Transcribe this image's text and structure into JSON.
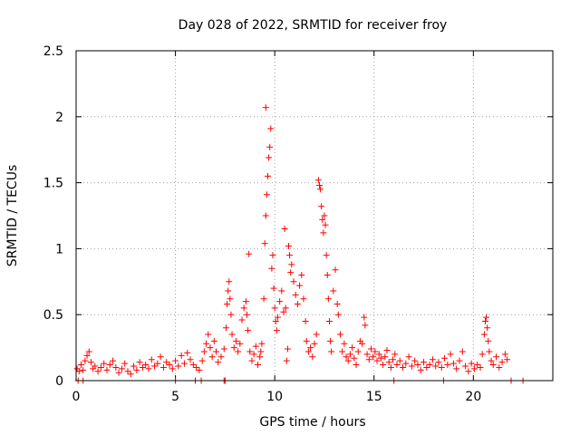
{
  "chart_data": {
    "type": "scatter",
    "title": "Day 028 of 2022, SRMTID for receiver froy",
    "xlabel": "GPS time / hours",
    "ylabel": "SRMTID / TECUs",
    "xlim": [
      0,
      24
    ],
    "ylim": [
      0,
      2.5
    ],
    "x_ticks": [
      0,
      5,
      10,
      15,
      20
    ],
    "x_tick_labels": [
      "0",
      "5",
      "10",
      "15",
      "20"
    ],
    "y_ticks": [
      0,
      0.5,
      1,
      1.5,
      2,
      2.5
    ],
    "y_tick_labels": [
      "0",
      "0.5",
      "1",
      "1.5",
      "2",
      "2.5"
    ],
    "grid": true,
    "marker": "plus",
    "series_color": "#ff0000",
    "series": [
      {
        "name": "SRMTID",
        "points": [
          [
            0.05,
            0.09
          ],
          [
            0.15,
            0.07
          ],
          [
            0.25,
            0.12
          ],
          [
            0.35,
            0.08
          ],
          [
            0.45,
            0.15
          ],
          [
            0.55,
            0.19
          ],
          [
            0.65,
            0.22
          ],
          [
            0.75,
            0.14
          ],
          [
            0.85,
            0.09
          ],
          [
            0.95,
            0.11
          ],
          [
            1.1,
            0.07
          ],
          [
            1.25,
            0.1
          ],
          [
            1.4,
            0.13
          ],
          [
            1.55,
            0.08
          ],
          [
            1.7,
            0.12
          ],
          [
            1.85,
            0.15
          ],
          [
            2.0,
            0.1
          ],
          [
            2.15,
            0.06
          ],
          [
            2.3,
            0.09
          ],
          [
            2.45,
            0.13
          ],
          [
            2.6,
            0.07
          ],
          [
            2.75,
            0.05
          ],
          [
            2.9,
            0.11
          ],
          [
            3.05,
            0.08
          ],
          [
            3.2,
            0.14
          ],
          [
            3.35,
            0.1
          ],
          [
            3.5,
            0.12
          ],
          [
            3.65,
            0.09
          ],
          [
            3.8,
            0.16
          ],
          [
            3.95,
            0.11
          ],
          [
            4.1,
            0.13
          ],
          [
            4.25,
            0.18
          ],
          [
            4.4,
            0.1
          ],
          [
            4.55,
            0.14
          ],
          [
            4.7,
            0.12
          ],
          [
            4.85,
            0.09
          ],
          [
            5.0,
            0.15
          ],
          [
            5.15,
            0.11
          ],
          [
            5.3,
            0.19
          ],
          [
            5.45,
            0.13
          ],
          [
            5.6,
            0.21
          ],
          [
            5.75,
            0.16
          ],
          [
            5.9,
            0.12
          ],
          [
            6.05,
            0.1
          ],
          [
            6.2,
            0.08
          ],
          [
            6.35,
            0.15
          ],
          [
            6.45,
            0.22
          ],
          [
            6.55,
            0.28
          ],
          [
            6.65,
            0.35
          ],
          [
            6.75,
            0.25
          ],
          [
            6.85,
            0.18
          ],
          [
            6.95,
            0.3
          ],
          [
            7.05,
            0.22
          ],
          [
            7.15,
            0.14
          ],
          [
            7.3,
            0.18
          ],
          [
            7.45,
            0.24
          ],
          [
            7.55,
            0.4
          ],
          [
            7.6,
            0.58
          ],
          [
            7.65,
            0.68
          ],
          [
            7.7,
            0.75
          ],
          [
            7.75,
            0.62
          ],
          [
            7.8,
            0.5
          ],
          [
            7.85,
            0.35
          ],
          [
            7.95,
            0.25
          ],
          [
            8.05,
            0.3
          ],
          [
            8.15,
            0.22
          ],
          [
            8.25,
            0.28
          ],
          [
            8.35,
            0.46
          ],
          [
            8.45,
            0.55
          ],
          [
            8.55,
            0.6
          ],
          [
            8.6,
            0.5
          ],
          [
            8.65,
            0.38
          ],
          [
            8.7,
            0.96
          ],
          [
            8.75,
            0.22
          ],
          [
            8.85,
            0.15
          ],
          [
            8.95,
            0.2
          ],
          [
            9.05,
            0.26
          ],
          [
            9.15,
            0.12
          ],
          [
            9.25,
            0.18
          ],
          [
            9.3,
            0.22
          ],
          [
            9.35,
            0.28
          ],
          [
            9.45,
            0.62
          ],
          [
            9.5,
            1.04
          ],
          [
            9.55,
            1.25
          ],
          [
            9.6,
            1.41
          ],
          [
            9.65,
            1.55
          ],
          [
            9.7,
            1.69
          ],
          [
            9.75,
            1.77
          ],
          [
            9.8,
            1.91
          ],
          [
            9.55,
            2.07
          ],
          [
            9.85,
            0.85
          ],
          [
            9.9,
            0.95
          ],
          [
            9.95,
            0.7
          ],
          [
            10.0,
            0.55
          ],
          [
            10.05,
            0.45
          ],
          [
            10.1,
            0.38
          ],
          [
            10.15,
            0.48
          ],
          [
            10.25,
            0.6
          ],
          [
            10.35,
            0.68
          ],
          [
            10.45,
            0.52
          ],
          [
            10.5,
            1.15
          ],
          [
            10.55,
            0.55
          ],
          [
            10.6,
            0.15
          ],
          [
            10.65,
            0.24
          ],
          [
            10.7,
            1.02
          ],
          [
            10.75,
            0.95
          ],
          [
            10.8,
            0.82
          ],
          [
            10.85,
            0.88
          ],
          [
            10.95,
            0.75
          ],
          [
            11.05,
            0.65
          ],
          [
            11.15,
            0.58
          ],
          [
            11.25,
            0.72
          ],
          [
            11.35,
            0.8
          ],
          [
            11.45,
            0.62
          ],
          [
            11.55,
            0.45
          ],
          [
            11.6,
            0.3
          ],
          [
            11.7,
            0.22
          ],
          [
            11.8,
            0.25
          ],
          [
            11.9,
            0.18
          ],
          [
            12.0,
            0.28
          ],
          [
            12.1,
            0.35
          ],
          [
            12.2,
            1.52
          ],
          [
            12.25,
            1.48
          ],
          [
            12.3,
            1.45
          ],
          [
            12.35,
            1.32
          ],
          [
            12.4,
            1.22
          ],
          [
            12.45,
            1.12
          ],
          [
            12.5,
            1.25
          ],
          [
            12.55,
            1.18
          ],
          [
            12.6,
            0.95
          ],
          [
            12.65,
            0.8
          ],
          [
            12.7,
            0.62
          ],
          [
            12.75,
            0.45
          ],
          [
            12.8,
            0.3
          ],
          [
            12.85,
            0.22
          ],
          [
            12.95,
            0.68
          ],
          [
            13.05,
            0.84
          ],
          [
            13.15,
            0.58
          ],
          [
            13.2,
            0.5
          ],
          [
            13.3,
            0.35
          ],
          [
            13.4,
            0.22
          ],
          [
            13.5,
            0.28
          ],
          [
            13.6,
            0.18
          ],
          [
            13.7,
            0.15
          ],
          [
            13.8,
            0.2
          ],
          [
            13.9,
            0.25
          ],
          [
            14.0,
            0.17
          ],
          [
            14.1,
            0.12
          ],
          [
            14.2,
            0.22
          ],
          [
            14.3,
            0.3
          ],
          [
            14.4,
            0.28
          ],
          [
            14.5,
            0.48
          ],
          [
            14.55,
            0.42
          ],
          [
            14.65,
            0.2
          ],
          [
            14.75,
            0.16
          ],
          [
            14.85,
            0.24
          ],
          [
            14.95,
            0.18
          ],
          [
            15.05,
            0.22
          ],
          [
            15.15,
            0.15
          ],
          [
            15.25,
            0.2
          ],
          [
            15.35,
            0.17
          ],
          [
            15.45,
            0.12
          ],
          [
            15.55,
            0.18
          ],
          [
            15.65,
            0.23
          ],
          [
            15.75,
            0.14
          ],
          [
            15.85,
            0.1
          ],
          [
            15.95,
            0.16
          ],
          [
            16.05,
            0.2
          ],
          [
            16.15,
            0.12
          ],
          [
            16.3,
            0.15
          ],
          [
            16.45,
            0.1
          ],
          [
            16.6,
            0.13
          ],
          [
            16.75,
            0.18
          ],
          [
            16.9,
            0.11
          ],
          [
            17.05,
            0.15
          ],
          [
            17.2,
            0.12
          ],
          [
            17.35,
            0.08
          ],
          [
            17.5,
            0.14
          ],
          [
            17.65,
            0.1
          ],
          [
            17.8,
            0.12
          ],
          [
            17.95,
            0.16
          ],
          [
            18.1,
            0.11
          ],
          [
            18.25,
            0.14
          ],
          [
            18.4,
            0.1
          ],
          [
            18.55,
            0.17
          ],
          [
            18.7,
            0.12
          ],
          [
            18.85,
            0.2
          ],
          [
            19.0,
            0.13
          ],
          [
            19.15,
            0.09
          ],
          [
            19.3,
            0.15
          ],
          [
            19.45,
            0.22
          ],
          [
            19.6,
            0.11
          ],
          [
            19.75,
            0.07
          ],
          [
            19.9,
            0.13
          ],
          [
            20.05,
            0.09
          ],
          [
            20.2,
            0.12
          ],
          [
            20.35,
            0.1
          ],
          [
            20.45,
            0.2
          ],
          [
            20.55,
            0.35
          ],
          [
            20.6,
            0.45
          ],
          [
            20.65,
            0.48
          ],
          [
            20.7,
            0.4
          ],
          [
            20.75,
            0.3
          ],
          [
            20.8,
            0.22
          ],
          [
            20.9,
            0.15
          ],
          [
            21.0,
            0.12
          ],
          [
            21.15,
            0.18
          ],
          [
            21.3,
            0.1
          ],
          [
            21.45,
            0.14
          ],
          [
            21.6,
            0.2
          ],
          [
            21.7,
            0.16
          ],
          [
            0.1,
            0.0
          ],
          [
            0.35,
            0.0
          ],
          [
            5.0,
            0.0
          ],
          [
            6.0,
            0.0
          ],
          [
            6.3,
            0.0
          ],
          [
            7.45,
            0.0
          ],
          [
            7.5,
            0.0
          ],
          [
            16.0,
            0.0
          ],
          [
            18.5,
            0.0
          ],
          [
            21.9,
            0.0
          ],
          [
            22.5,
            0.0
          ]
        ]
      }
    ]
  }
}
